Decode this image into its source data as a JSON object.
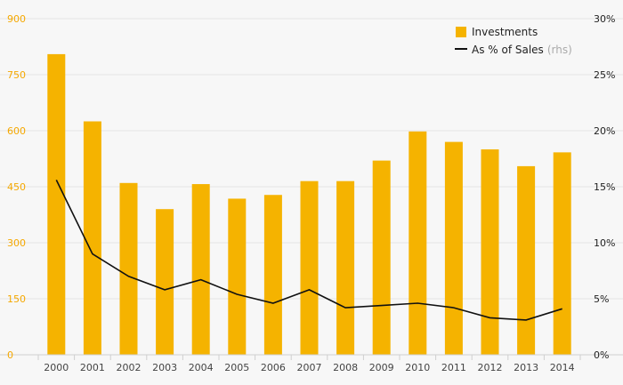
{
  "colors": {
    "bar": "#f5b300",
    "line": "#111111",
    "grid": "#e4e4e4",
    "axis_left": "#f5a800",
    "background": "#f7f7f7"
  },
  "chart_data": {
    "type": "bar",
    "title": "",
    "xlabel": "",
    "ylabel": "",
    "categories": [
      "2000",
      "2001",
      "2002",
      "2003",
      "2004",
      "2005",
      "2006",
      "2007",
      "2008",
      "2009",
      "2010",
      "2011",
      "2012",
      "2013",
      "2014"
    ],
    "series": [
      {
        "name": "Investments",
        "type": "bar",
        "axis": "left",
        "values": [
          805,
          625,
          460,
          390,
          457,
          418,
          428,
          465,
          465,
          520,
          598,
          570,
          550,
          505,
          542
        ]
      },
      {
        "name": "As % of Sales",
        "name_suffix": "(rhs)",
        "type": "line",
        "axis": "right",
        "values": [
          15.6,
          9.0,
          7.0,
          5.8,
          6.7,
          5.4,
          4.6,
          5.8,
          4.2,
          4.4,
          4.6,
          4.2,
          3.3,
          3.1,
          4.1
        ]
      }
    ],
    "y_left": {
      "range": [
        0,
        900
      ],
      "ticks": [
        "0",
        "150",
        "300",
        "450",
        "600",
        "750",
        "900"
      ]
    },
    "y_right": {
      "range": [
        0,
        30
      ],
      "ticks": [
        "0%",
        "5%",
        "10%",
        "15%",
        "20%",
        "25%",
        "30%"
      ]
    },
    "grid": true,
    "legend": {
      "position": "top-right"
    }
  }
}
